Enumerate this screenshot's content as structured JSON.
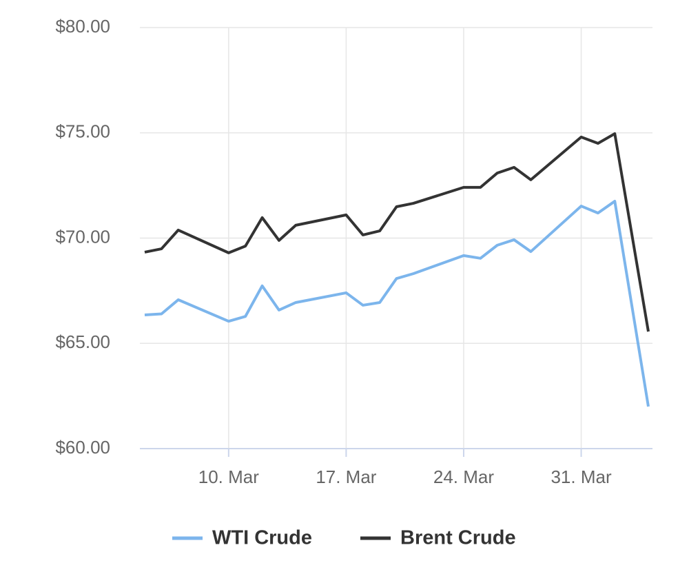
{
  "chart_data": {
    "type": "line",
    "x": [
      "5. Mar",
      "6. Mar",
      "7. Mar",
      "10. Mar",
      "11. Mar",
      "12. Mar",
      "13. Mar",
      "14. Mar",
      "17. Mar",
      "18. Mar",
      "19. Mar",
      "20. Mar",
      "21. Mar",
      "24. Mar",
      "25. Mar",
      "26. Mar",
      "27. Mar",
      "28. Mar",
      "31. Mar",
      "1. Apr",
      "2. Apr",
      "4. Apr"
    ],
    "series": [
      {
        "name": "WTI Crude",
        "color": "#7cb5ec",
        "values": [
          66.35,
          66.4,
          67.07,
          66.05,
          66.28,
          67.73,
          66.58,
          66.94,
          67.4,
          66.81,
          66.94,
          68.08,
          68.31,
          69.17,
          69.04,
          69.66,
          69.92,
          69.36,
          71.52,
          71.19,
          71.75,
          62.0
        ]
      },
      {
        "name": "Brent Crude",
        "color": "#333333",
        "values": [
          69.33,
          69.49,
          70.38,
          69.3,
          69.62,
          70.97,
          69.89,
          70.61,
          71.1,
          70.15,
          70.34,
          71.49,
          71.65,
          72.41,
          72.41,
          73.09,
          73.36,
          72.77,
          74.8,
          74.5,
          74.96,
          65.56
        ]
      }
    ],
    "xticks": [
      "10. Mar",
      "17. Mar",
      "24. Mar",
      "31. Mar"
    ],
    "xlim": [
      "5. Mar",
      "4. Apr"
    ],
    "ylim": [
      60,
      80
    ],
    "yticks": [
      {
        "value": 60,
        "label": "$60.00"
      },
      {
        "value": 65,
        "label": "$65.00"
      },
      {
        "value": 70,
        "label": "$70.00"
      },
      {
        "value": 75,
        "label": "$75.00"
      },
      {
        "value": 80,
        "label": "$80.00"
      }
    ],
    "grid": true,
    "legend": "bottom"
  }
}
